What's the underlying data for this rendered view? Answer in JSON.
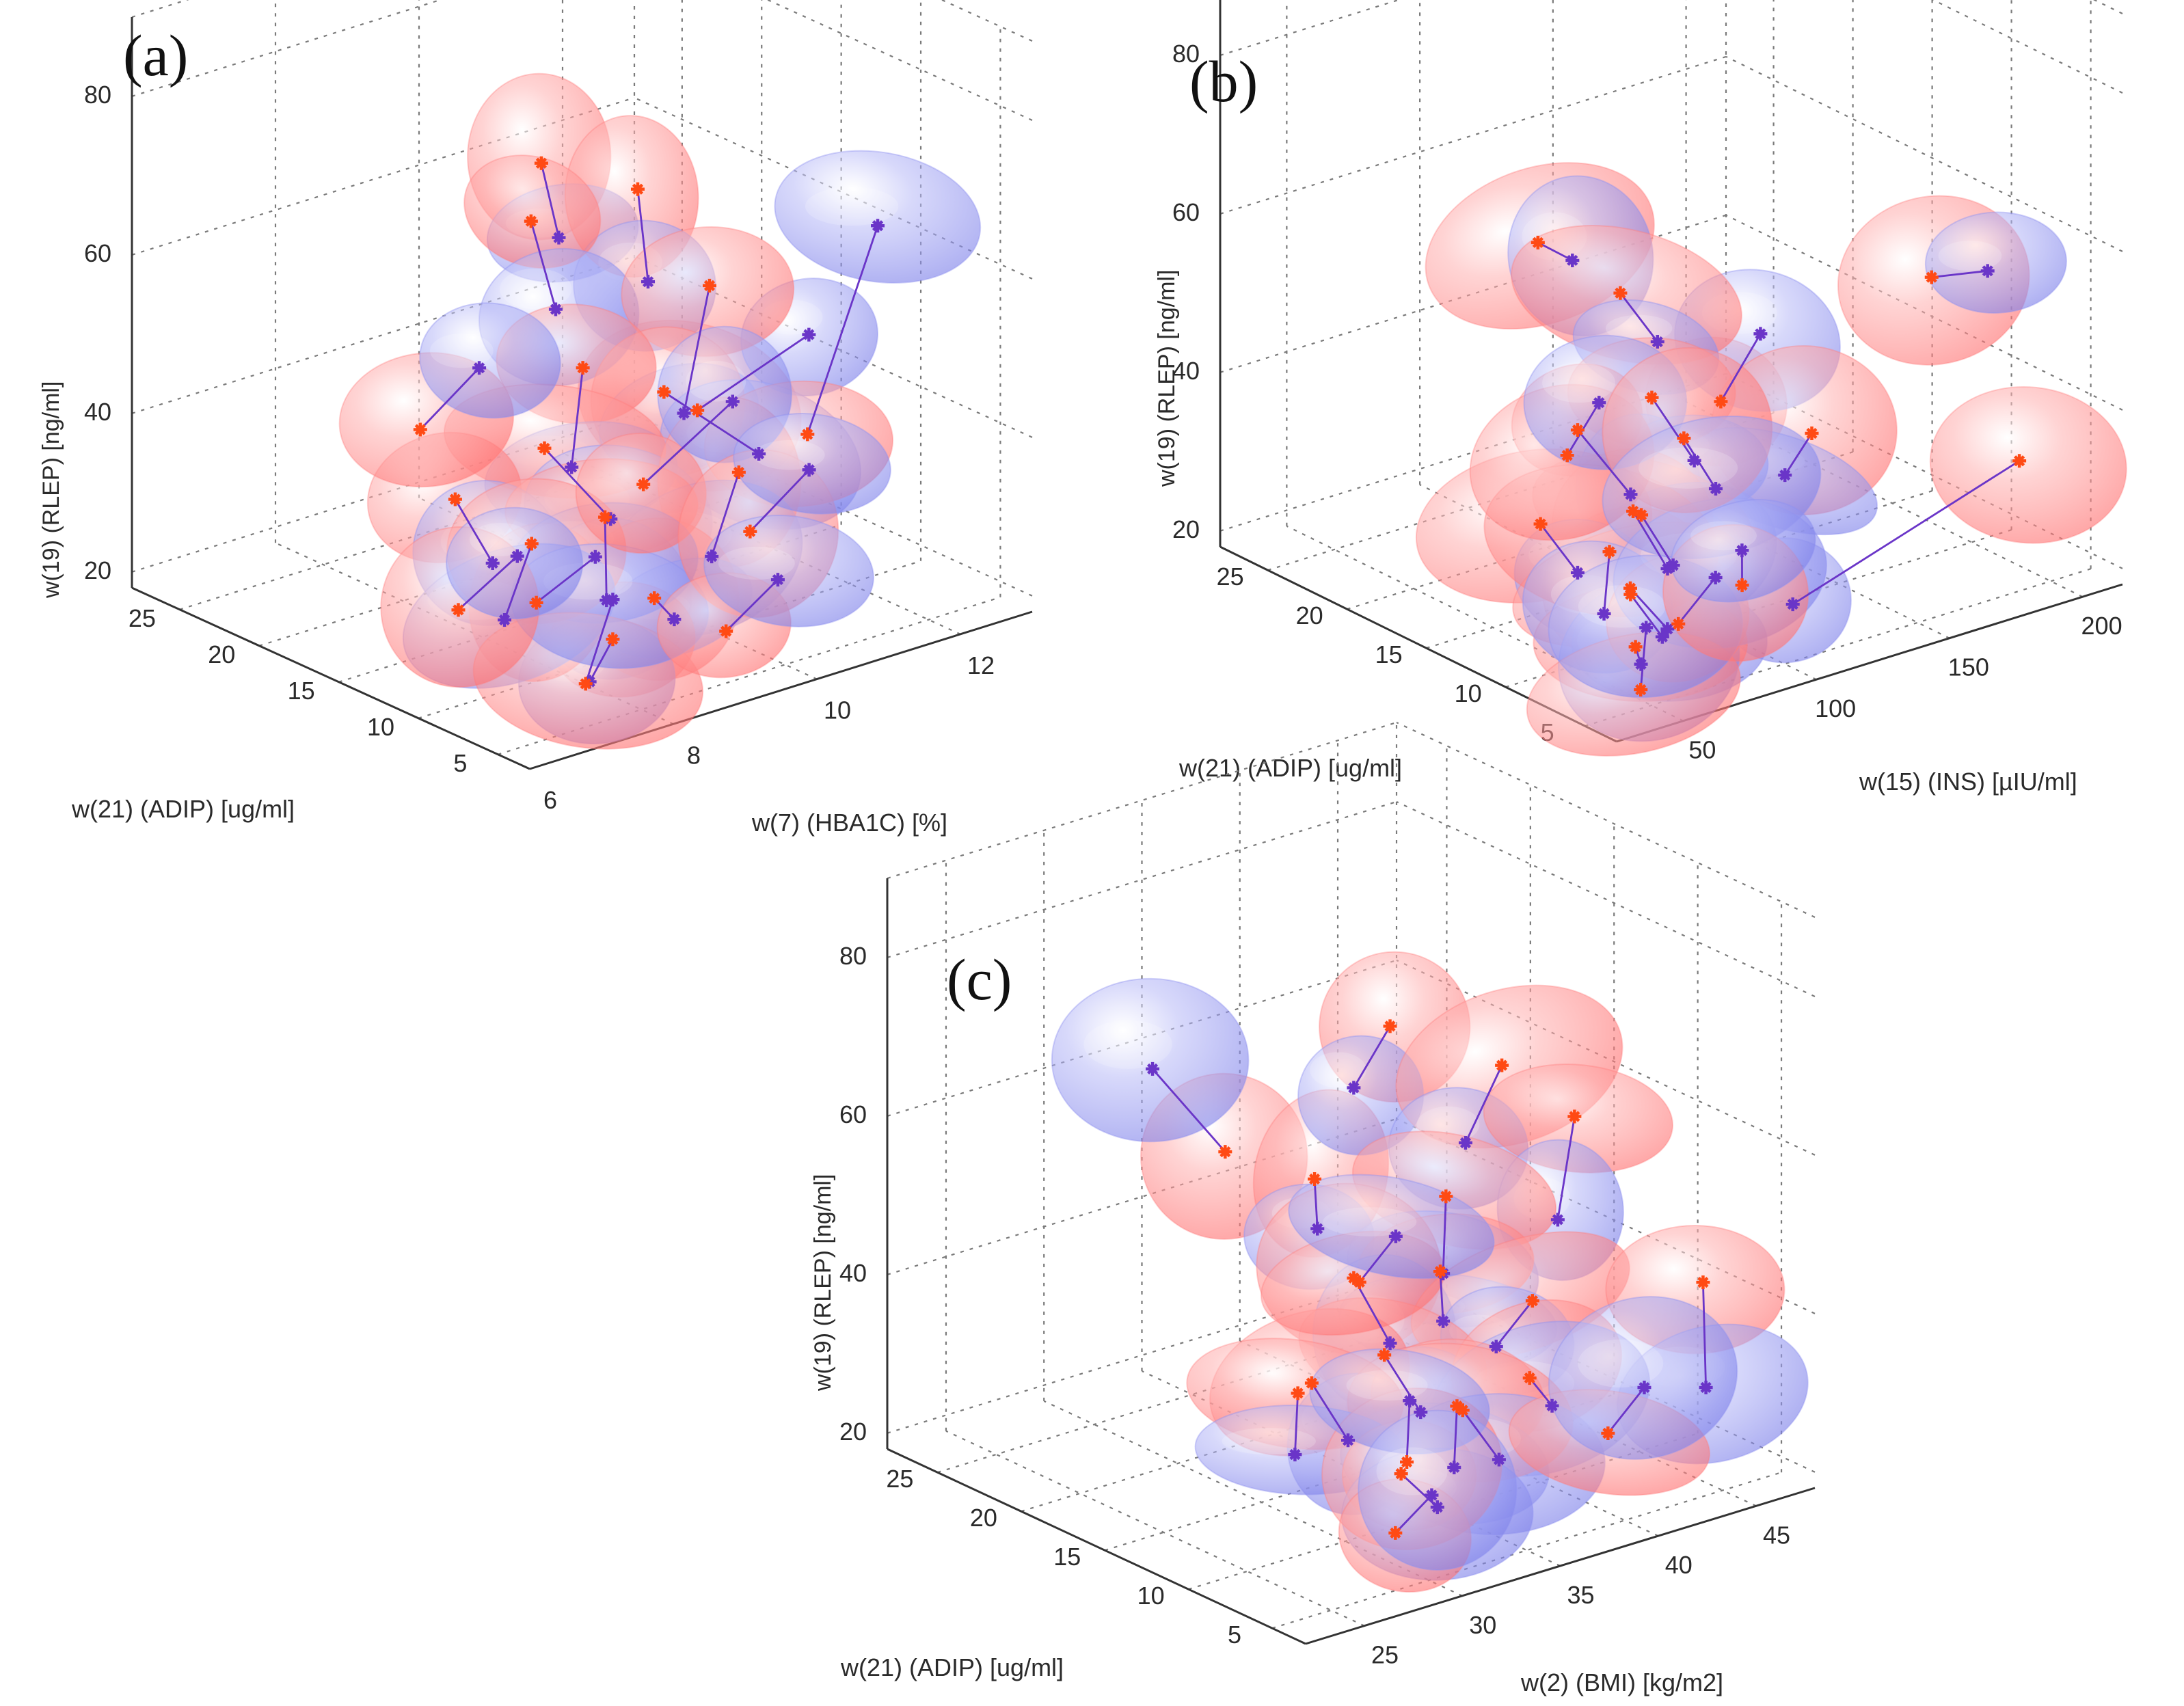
{
  "figure": {
    "colors": {
      "red_blob": "#ff7a7a",
      "blue_blob": "#8f92f0",
      "connector": "#6a35c8",
      "red_marker": "#ff4a14",
      "blue_marker": "#6a35c8"
    }
  },
  "chart_data": [
    {
      "type": "scatter",
      "panel_label": "(a)",
      "title": "",
      "xlabel": "w(21) (ADIP) [ug/ml]",
      "ylabel": "w(7) (HBA1C) [%]",
      "zlabel": "w(19) (RLEP) [ng/ml]",
      "xlim": [
        3,
        28
      ],
      "ylim": [
        6,
        13
      ],
      "zlim": [
        18,
        90
      ],
      "xticks": [
        5,
        10,
        15,
        20,
        25
      ],
      "yticks": [
        6,
        8,
        10,
        12
      ],
      "zticks": [
        20,
        40,
        60,
        80
      ],
      "grid": true,
      "pairs": [
        {
          "red": [
            6,
            9.0,
            52
          ],
          "blue": [
            3.5,
            10.0,
            61
          ]
        },
        {
          "red": [
            14,
            8.6,
            77
          ],
          "blue": [
            12,
            8.4,
            70
          ]
        },
        {
          "red": [
            12,
            9.5,
            73
          ],
          "blue": [
            10,
            9.2,
            64
          ]
        },
        {
          "red": [
            16,
            8.9,
            67
          ],
          "blue": [
            14,
            8.8,
            58
          ]
        },
        {
          "red": [
            12,
            10.5,
            58
          ],
          "blue": [
            10,
            9.7,
            46
          ]
        },
        {
          "red": [
            9,
            9.2,
            51
          ],
          "blue": [
            8,
            10.3,
            41
          ]
        },
        {
          "red": [
            15,
            9.4,
            48
          ],
          "blue": [
            13,
            8.8,
            39
          ]
        },
        {
          "red": [
            9,
            11.2,
            40
          ],
          "blue": [
            10,
            12.4,
            62
          ]
        },
        {
          "red": [
            12,
            8.2,
            44
          ],
          "blue": [
            11,
            8.9,
            34
          ]
        },
        {
          "red": [
            7,
            9.8,
            41
          ],
          "blue": [
            6,
            9.2,
            33
          ]
        },
        {
          "red": [
            14,
            7.4,
            38
          ],
          "blue": [
            13,
            7.7,
            30
          ]
        },
        {
          "red": [
            10,
            8.6,
            36
          ],
          "blue": [
            9,
            8.4,
            27
          ]
        },
        {
          "red": [
            6,
            8.4,
            30
          ],
          "blue": [
            7,
            8.9,
            25
          ]
        },
        {
          "red": [
            5,
            7.6,
            28
          ],
          "blue": [
            6,
            7.5,
            22
          ]
        },
        {
          "red": [
            8,
            7.2,
            31
          ],
          "blue": [
            7,
            7.8,
            36
          ]
        },
        {
          "red": [
            11,
            7.8,
            34
          ],
          "blue": [
            10,
            7.2,
            27
          ]
        },
        {
          "red": [
            4,
            7.0,
            25
          ],
          "blue": [
            5,
            7.6,
            33
          ]
        },
        {
          "red": [
            13,
            9.8,
            34
          ],
          "blue": [
            11,
            10.6,
            44
          ]
        },
        {
          "red": [
            9,
            10.4,
            30
          ],
          "blue": [
            8,
            11.0,
            37
          ]
        },
        {
          "red": [
            12,
            7.0,
            27
          ],
          "blue": [
            11,
            7.6,
            33
          ]
        },
        {
          "red": [
            6,
            9.4,
            23
          ],
          "blue": [
            5,
            9.9,
            29
          ]
        },
        {
          "red": [
            18,
            7.8,
            42
          ],
          "blue": [
            17,
            8.4,
            49
          ]
        }
      ]
    },
    {
      "type": "scatter",
      "panel_label": "(b)",
      "title": "",
      "xlabel": "w(21) (ADIP) [ug/ml]",
      "ylabel": "w(15) (INS) [µIU/ml]",
      "zlabel": "w(19) (RLEP) [ng/ml]",
      "xlim": [
        3,
        28
      ],
      "ylim": [
        25,
        215
      ],
      "zlim": [
        18,
        90
      ],
      "xticks": [
        5,
        10,
        15,
        20,
        25
      ],
      "yticks": [
        50,
        100,
        150,
        200
      ],
      "zticks": [
        20,
        40,
        60,
        80
      ],
      "grid": true,
      "pairs": [
        {
          "red": [
            6,
            82,
            52
          ],
          "blue": [
            3.5,
            82,
            63
          ]
        },
        {
          "red": [
            10,
            185,
            53
          ],
          "blue": [
            11,
            212,
            50
          ]
        },
        {
          "red": [
            9,
            212,
            28
          ],
          "blue": [
            7,
            115,
            22
          ]
        },
        {
          "red": [
            10,
            140,
            38
          ],
          "blue": [
            8,
            118,
            37
          ]
        },
        {
          "red": [
            13,
            55,
            68
          ],
          "blue": [
            12,
            62,
            66
          ]
        },
        {
          "red": [
            12,
            80,
            60
          ],
          "blue": [
            11,
            88,
            54
          ]
        },
        {
          "red": [
            8,
            68,
            52
          ],
          "blue": [
            7,
            78,
            44
          ]
        },
        {
          "red": [
            11,
            58,
            46
          ],
          "blue": [
            9,
            66,
            39
          ]
        },
        {
          "red": [
            7,
            55,
            40
          ],
          "blue": [
            6,
            62,
            33
          ]
        },
        {
          "red": [
            9,
            70,
            36
          ],
          "blue": [
            8,
            76,
            30
          ]
        },
        {
          "red": [
            6,
            48,
            32
          ],
          "blue": [
            5,
            56,
            27
          ]
        },
        {
          "red": [
            12,
            50,
            34
          ],
          "blue": [
            11,
            58,
            28
          ]
        },
        {
          "red": [
            8,
            60,
            28
          ],
          "blue": [
            7,
            66,
            23
          ]
        },
        {
          "red": [
            5,
            44,
            26
          ],
          "blue": [
            6,
            52,
            22
          ]
        },
        {
          "red": [
            10,
            64,
            31
          ],
          "blue": [
            9,
            56,
            25
          ]
        },
        {
          "red": [
            7,
            72,
            24
          ],
          "blue": [
            6,
            80,
            30
          ]
        },
        {
          "red": [
            4,
            40,
            22
          ],
          "blue": [
            5,
            48,
            28
          ]
        },
        {
          "red": [
            13,
            66,
            40
          ],
          "blue": [
            12,
            72,
            47
          ]
        },
        {
          "red": [
            9,
            86,
            44
          ],
          "blue": [
            8,
            92,
            38
          ]
        },
        {
          "red": [
            6,
            90,
            28
          ],
          "blue": [
            5,
            84,
            34
          ]
        }
      ]
    },
    {
      "type": "scatter",
      "panel_label": "(c)",
      "title": "",
      "xlabel": "w(21) (ADIP) [ug/ml]",
      "ylabel": "w(2) (BMI) [kg/m2]",
      "zlabel": "w(19) (RLEP) [ng/ml]",
      "xlim": [
        3,
        28
      ],
      "ylim": [
        22,
        48
      ],
      "zlim": [
        18,
        90
      ],
      "xticks": [
        5,
        10,
        15,
        20,
        25
      ],
      "yticks": [
        25,
        30,
        35,
        40,
        45
      ],
      "zticks": [
        20,
        40,
        60,
        80
      ],
      "grid": true,
      "pairs": [
        {
          "red": [
            16,
            29,
            62
          ],
          "blue": [
            18,
            27,
            72
          ]
        },
        {
          "red": [
            13,
            31,
            60
          ],
          "blue": [
            14,
            32,
            52
          ]
        },
        {
          "red": [
            12,
            34,
            78
          ],
          "blue": [
            13,
            33,
            70
          ]
        },
        {
          "red": [
            10,
            38,
            72
          ],
          "blue": [
            11,
            37,
            62
          ]
        },
        {
          "red": [
            8,
            40,
            66
          ],
          "blue": [
            9,
            40,
            52
          ]
        },
        {
          "red": [
            11,
            36,
            56
          ],
          "blue": [
            10,
            35,
            48
          ]
        },
        {
          "red": [
            9,
            34,
            50
          ],
          "blue": [
            10,
            35,
            42
          ]
        },
        {
          "red": [
            13,
            33,
            46
          ],
          "blue": [
            12,
            34,
            38
          ]
        },
        {
          "red": [
            7,
            37,
            46
          ],
          "blue": [
            8,
            36,
            40
          ]
        },
        {
          "red": [
            5,
            44,
            45
          ],
          "blue": [
            6,
            45,
            30
          ]
        },
        {
          "red": [
            10,
            32,
            40
          ],
          "blue": [
            9,
            33,
            33
          ]
        },
        {
          "red": [
            6,
            36,
            38
          ],
          "blue": [
            7,
            38,
            32
          ]
        },
        {
          "red": [
            12,
            30,
            36
          ],
          "blue": [
            11,
            31,
            29
          ]
        },
        {
          "red": [
            8,
            34,
            34
          ],
          "blue": [
            7,
            33,
            28
          ]
        },
        {
          "red": [
            10,
            36,
            30
          ],
          "blue": [
            9,
            37,
            24
          ]
        },
        {
          "red": [
            14,
            31,
            32
          ],
          "blue": [
            13,
            30,
            26
          ]
        },
        {
          "red": [
            6,
            40,
            28
          ],
          "blue": [
            5,
            41,
            34
          ]
        },
        {
          "red": [
            9,
            32,
            26
          ],
          "blue": [
            8,
            33,
            22
          ]
        },
        {
          "red": [
            11,
            34,
            24
          ],
          "blue": [
            12,
            35,
            30
          ]
        },
        {
          "red": [
            7,
            30,
            22
          ],
          "blue": [
            6,
            31,
            27
          ]
        },
        {
          "red": [
            15,
            35,
            42
          ],
          "blue": [
            14,
            36,
            48
          ]
        }
      ]
    }
  ]
}
